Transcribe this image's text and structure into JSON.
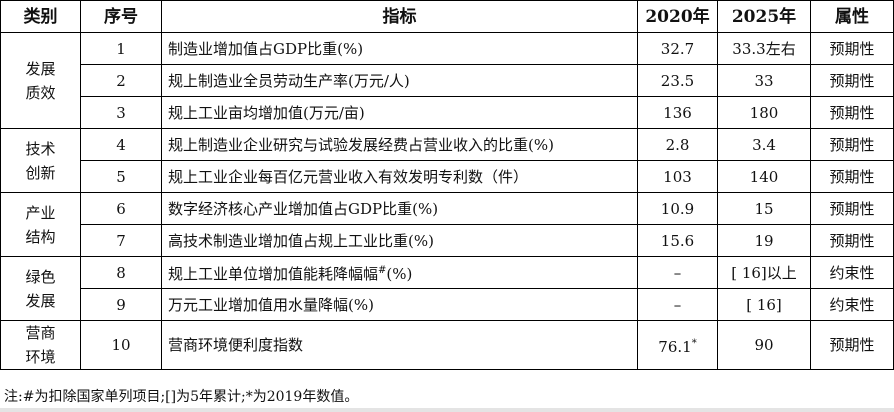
{
  "headers": [
    "类别",
    "序号",
    "指标",
    "2020年",
    "2025年",
    "属性"
  ],
  "groups": [
    {
      "category": [
        "发展",
        "质效"
      ],
      "rows": [
        {
          "no": "1",
          "indicator": "制造业增加值占GDP比重(%)",
          "y2020": "32.7",
          "y2025": "33.3左右",
          "type": "预期性"
        },
        {
          "no": "2",
          "indicator": "规上制造业全员劳动生产率(万元/人)",
          "y2020": "23.5",
          "y2025": "33",
          "type": "预期性"
        },
        {
          "no": "3",
          "indicator": "规上工业亩均增加值(万元/亩)",
          "y2020": "136",
          "y2025": "180",
          "type": "预期性"
        }
      ]
    },
    {
      "category": [
        "技术",
        "创新"
      ],
      "rows": [
        {
          "no": "4",
          "indicator": "规上制造业企业研究与试验发展经费占营业收入的比重(%)",
          "y2020": "2.8",
          "y2025": "3.4",
          "type": "预期性"
        },
        {
          "no": "5",
          "indicator": "规上工业企业每百亿元营业收入有效发明专利数（件）",
          "y2020": "103",
          "y2025": "140",
          "type": "预期性"
        }
      ]
    },
    {
      "category": [
        "产业",
        "结构"
      ],
      "rows": [
        {
          "no": "6",
          "indicator": "数字经济核心产业增加值占GDP比重(%)",
          "y2020": "10.9",
          "y2025": "15",
          "type": "预期性"
        },
        {
          "no": "7",
          "indicator": "高技术制造业增加值占规上工业比重(%)",
          "y2020": "15.6",
          "y2025": "19",
          "type": "预期性"
        }
      ]
    },
    {
      "category": [
        "绿色",
        "发展"
      ],
      "rows": [
        {
          "no": "8",
          "indicator": "规上工业单位增加值能耗降幅幅",
          "indicator_sup": "#",
          "indicator_tail": "(%)",
          "y2020": "–",
          "y2025": "[ 16]以上",
          "type": "约束性"
        },
        {
          "no": "9",
          "indicator": "万元工业增加值用水量降幅(%)",
          "y2020": "–",
          "y2025": "[ 16]",
          "type": "约束性"
        }
      ]
    },
    {
      "category": [
        "营商",
        "环境"
      ],
      "rows": [
        {
          "no": "10",
          "indicator": "营商环境便利度指数",
          "y2020": "76.1",
          "y2020_sup": "*",
          "y2025": "90",
          "type": "预期性"
        }
      ]
    }
  ],
  "note": "注:#为扣除国家单列项目;[]为5年累计;*为2019年数值。"
}
